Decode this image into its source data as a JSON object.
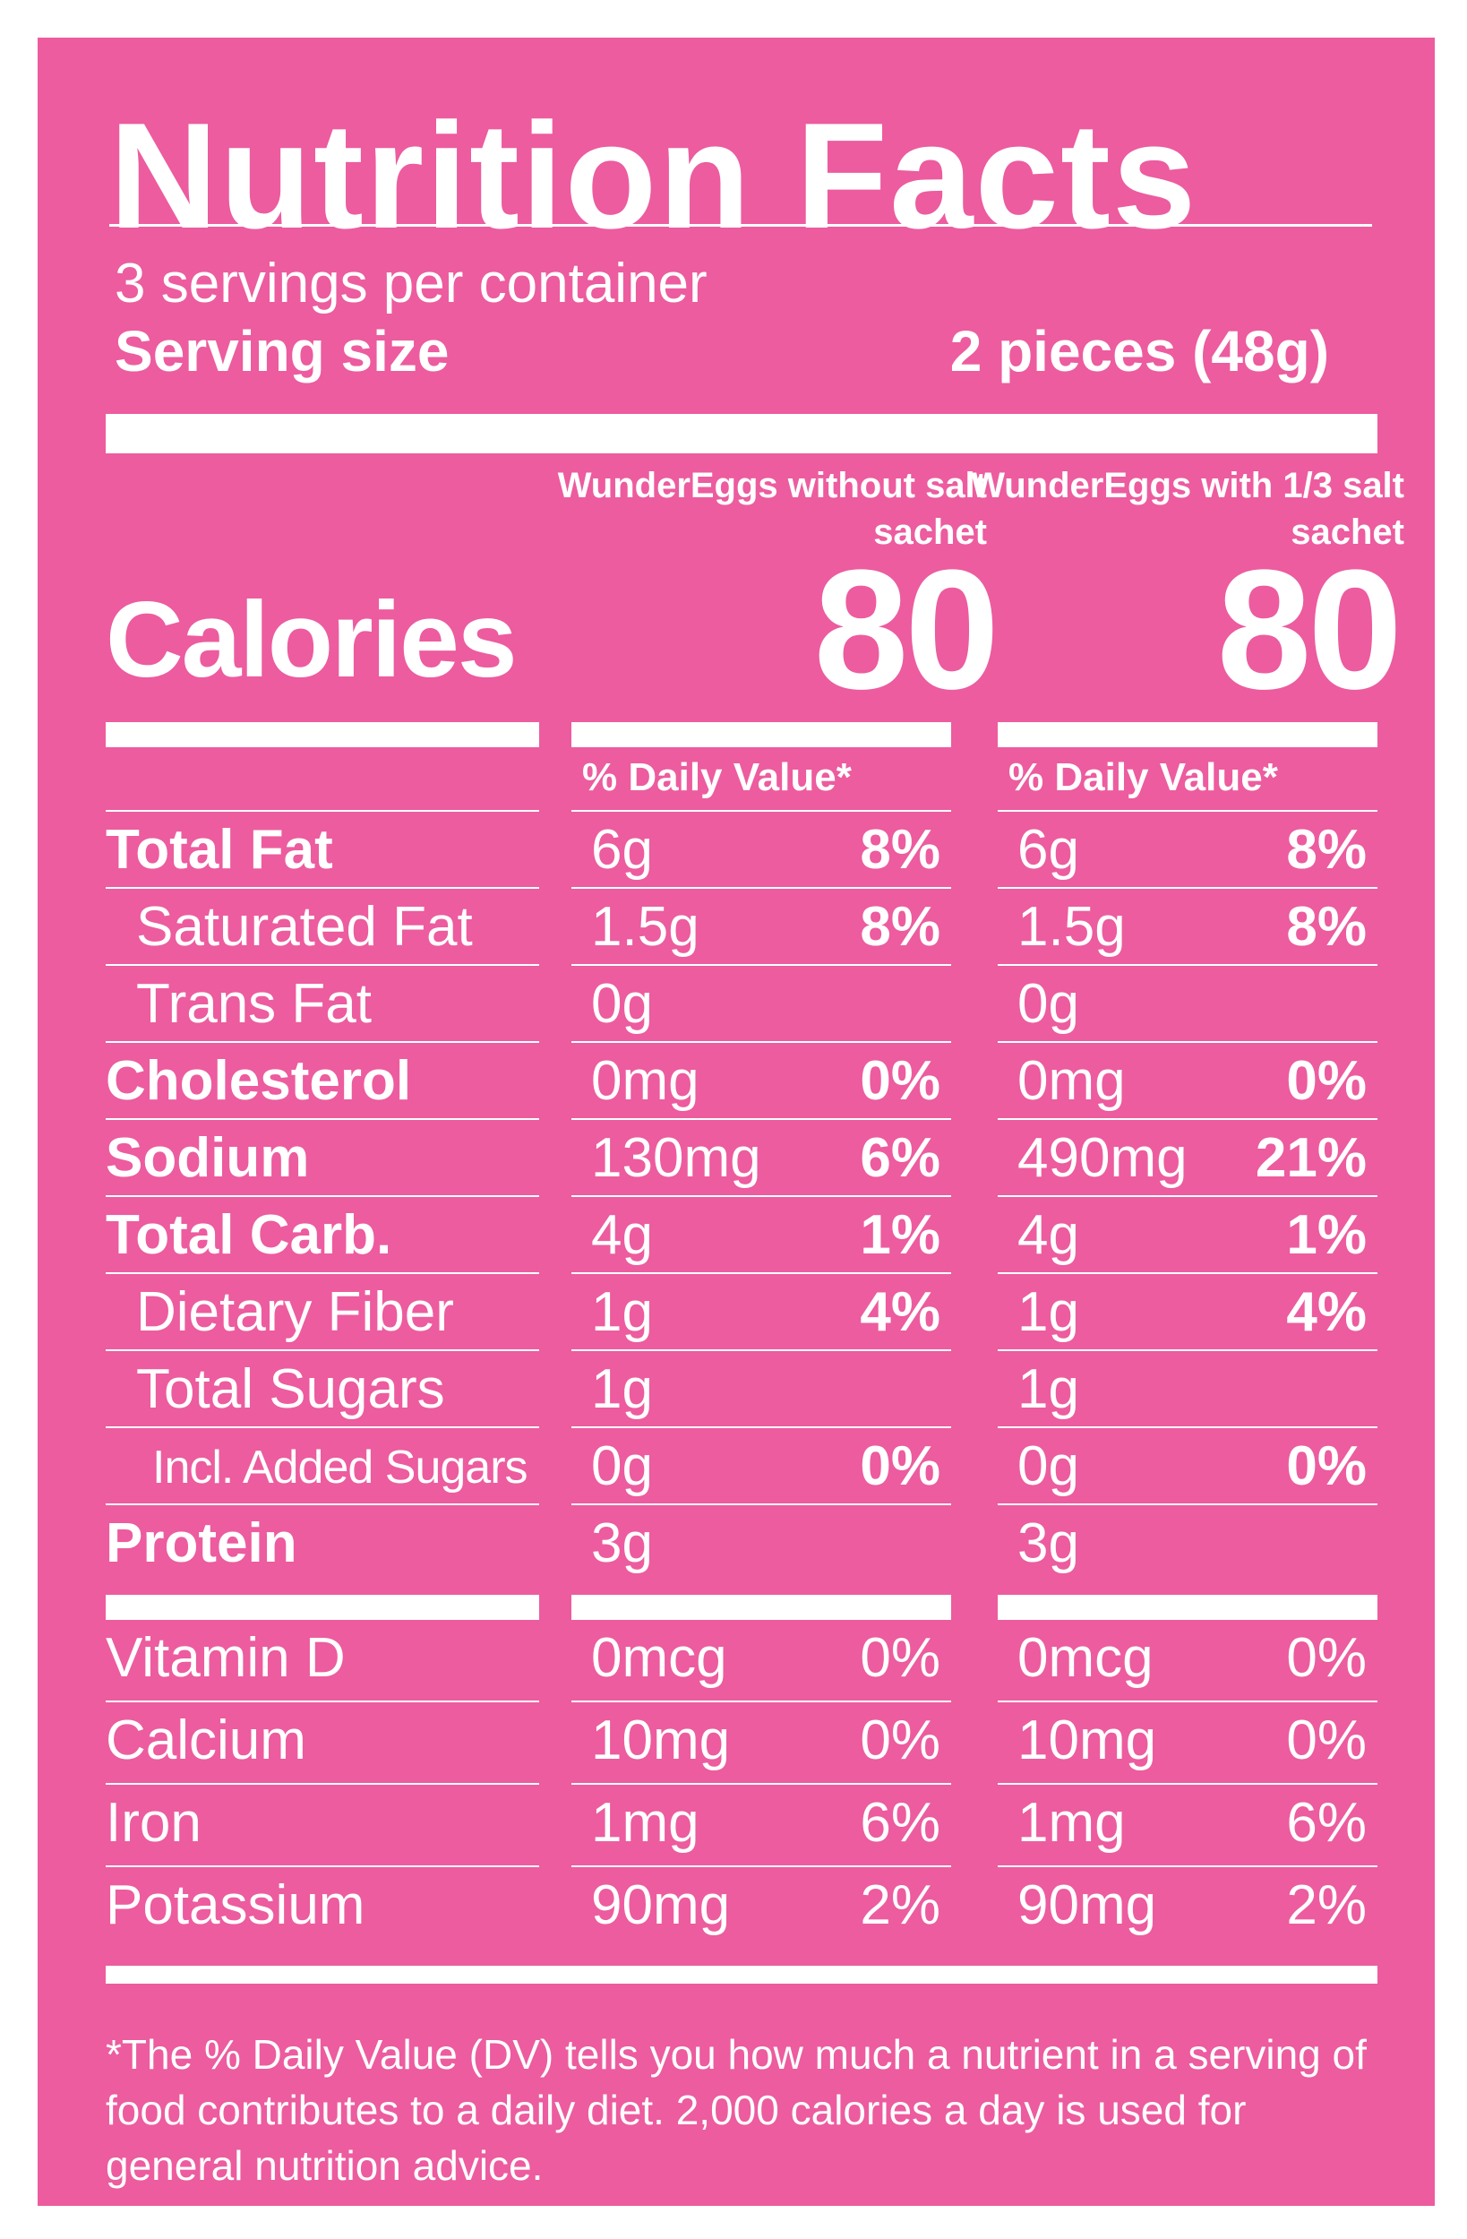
{
  "title": "Nutrition Facts",
  "servings_per_container": "3 servings per container",
  "serving_size_label": "Serving size",
  "serving_size_value": "2 pieces (48g)",
  "columns": [
    {
      "header": "WunderEggs without salt sachet",
      "calories": "80",
      "dv_header": "% Daily Value*"
    },
    {
      "header": "WunderEggs with 1/3 salt sachet",
      "calories": "80",
      "dv_header": "% Daily Value*"
    }
  ],
  "calories_label": "Calories",
  "nutrients": [
    {
      "label": "Total Fat",
      "bold": true,
      "indent": 0,
      "values": [
        {
          "amount": "6g",
          "dv": "8%"
        },
        {
          "amount": "6g",
          "dv": "8%"
        }
      ]
    },
    {
      "label": "Saturated Fat",
      "bold": false,
      "indent": 1,
      "values": [
        {
          "amount": "1.5g",
          "dv": "8%"
        },
        {
          "amount": "1.5g",
          "dv": "8%"
        }
      ]
    },
    {
      "label": "Trans Fat",
      "bold": false,
      "indent": 1,
      "values": [
        {
          "amount": "0g",
          "dv": ""
        },
        {
          "amount": "0g",
          "dv": ""
        }
      ]
    },
    {
      "label": "Cholesterol",
      "bold": true,
      "indent": 0,
      "values": [
        {
          "amount": "0mg",
          "dv": "0%"
        },
        {
          "amount": "0mg",
          "dv": "0%"
        }
      ]
    },
    {
      "label": "Sodium",
      "bold": true,
      "indent": 0,
      "values": [
        {
          "amount": "130mg",
          "dv": "6%"
        },
        {
          "amount": "490mg",
          "dv": "21%"
        }
      ]
    },
    {
      "label": "Total Carb.",
      "bold": true,
      "indent": 0,
      "values": [
        {
          "amount": "4g",
          "dv": "1%"
        },
        {
          "amount": "4g",
          "dv": "1%"
        }
      ]
    },
    {
      "label": "Dietary Fiber",
      "bold": false,
      "indent": 1,
      "values": [
        {
          "amount": "1g",
          "dv": "4%"
        },
        {
          "amount": "1g",
          "dv": "4%"
        }
      ]
    },
    {
      "label": "Total Sugars",
      "bold": false,
      "indent": 1,
      "values": [
        {
          "amount": "1g",
          "dv": ""
        },
        {
          "amount": "1g",
          "dv": ""
        }
      ]
    },
    {
      "label": "Incl. Added Sugars",
      "bold": false,
      "indent": 2,
      "values": [
        {
          "amount": "0g",
          "dv": "0%"
        },
        {
          "amount": "0g",
          "dv": "0%"
        }
      ]
    },
    {
      "label": "Protein",
      "bold": true,
      "indent": 0,
      "values": [
        {
          "amount": "3g",
          "dv": ""
        },
        {
          "amount": "3g",
          "dv": ""
        }
      ]
    }
  ],
  "vitamins": [
    {
      "label": "Vitamin D",
      "values": [
        {
          "amount": "0mcg",
          "dv": "0%"
        },
        {
          "amount": "0mcg",
          "dv": "0%"
        }
      ]
    },
    {
      "label": "Calcium",
      "values": [
        {
          "amount": "10mg",
          "dv": "0%"
        },
        {
          "amount": "10mg",
          "dv": "0%"
        }
      ]
    },
    {
      "label": "Iron",
      "values": [
        {
          "amount": "1mg",
          "dv": "6%"
        },
        {
          "amount": "1mg",
          "dv": "6%"
        }
      ]
    },
    {
      "label": "Potassium",
      "values": [
        {
          "amount": "90mg",
          "dv": "2%"
        },
        {
          "amount": "90mg",
          "dv": "2%"
        }
      ]
    }
  ],
  "footnote": "*The % Daily Value (DV) tells you how much a nutrient in a serving of food contributes to a daily diet. 2,000 calories a day is used for general nutrition advice.",
  "colors": {
    "background": "#ec5c9f",
    "text": "#ffffff"
  }
}
